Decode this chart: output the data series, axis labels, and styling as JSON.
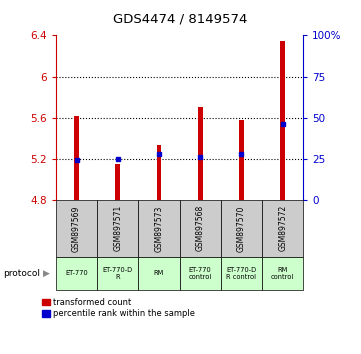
{
  "title": "GDS4474 / 8149574",
  "samples": [
    "GSM897569",
    "GSM897571",
    "GSM897573",
    "GSM897568",
    "GSM897570",
    "GSM897572"
  ],
  "protocols": [
    "ET-770",
    "ET-770-D\nR",
    "RM",
    "ET-770\ncontrol",
    "ET-770-D\nR control",
    "RM\ncontrol"
  ],
  "bar_bottom": 4.8,
  "bar_tops": [
    5.62,
    5.15,
    5.33,
    5.7,
    5.58,
    6.35
  ],
  "percentile_values": [
    5.19,
    5.2,
    5.25,
    5.22,
    5.25,
    5.54
  ],
  "ylim_left": [
    4.8,
    6.4
  ],
  "ylim_right": [
    0,
    100
  ],
  "yticks_left": [
    4.8,
    5.2,
    5.6,
    6.0,
    6.4
  ],
  "yticks_right": [
    0,
    25,
    50,
    75,
    100
  ],
  "ytick_labels_left": [
    "4.8",
    "5.2",
    "5.6",
    "6",
    "6.4"
  ],
  "ytick_labels_right": [
    "0",
    "25",
    "50",
    "75",
    "100%"
  ],
  "bar_color": "#cc0000",
  "percentile_color": "#0000cc",
  "bar_width": 0.12,
  "protocol_label": "protocol",
  "legend_labels": [
    "transformed count",
    "percentile rank within the sample"
  ],
  "protocol_bg_color": "#ccffcc",
  "sample_bg_color": "#cccccc",
  "dotted_gridlines": [
    5.2,
    5.6,
    6.0
  ]
}
